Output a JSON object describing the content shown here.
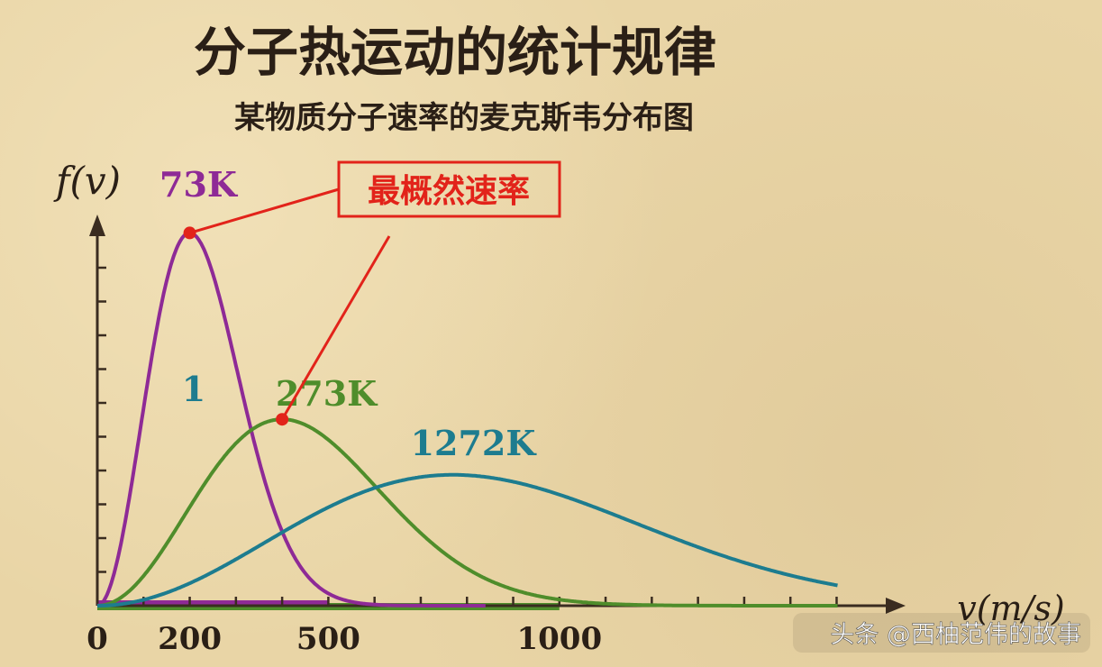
{
  "chart_data": {
    "type": "line",
    "title": "分子热运动的统计规律",
    "subtitle": "某物质分子速率的麦克斯韦分布图",
    "ylabel": "f(v)",
    "xlabel": "v(m/s)",
    "x_ticks": [
      {
        "value": 0,
        "label": "0"
      },
      {
        "value": 200,
        "label": "200"
      },
      {
        "value": 500,
        "label": "500"
      },
      {
        "value": 1000,
        "label": "1000"
      }
    ],
    "xlim": [
      0,
      1650
    ],
    "ylim": [
      0,
      1.0
    ],
    "series": [
      {
        "name": "73K",
        "color": "#8e2a96",
        "peak_v": 200,
        "peak_f": 0.94
      },
      {
        "name": "273K",
        "color": "#4f8d2b",
        "peak_v": 400,
        "peak_f": 0.47
      },
      {
        "name": "1272K",
        "color": "#1d7c8f",
        "peak_v": 770,
        "peak_f": 0.33
      }
    ],
    "annotations": {
      "callout": "最概然速率",
      "area_label": "1",
      "callout_color": "#e2231a"
    },
    "grid": false
  },
  "watermark": "头条 @西柚范伟的故事"
}
